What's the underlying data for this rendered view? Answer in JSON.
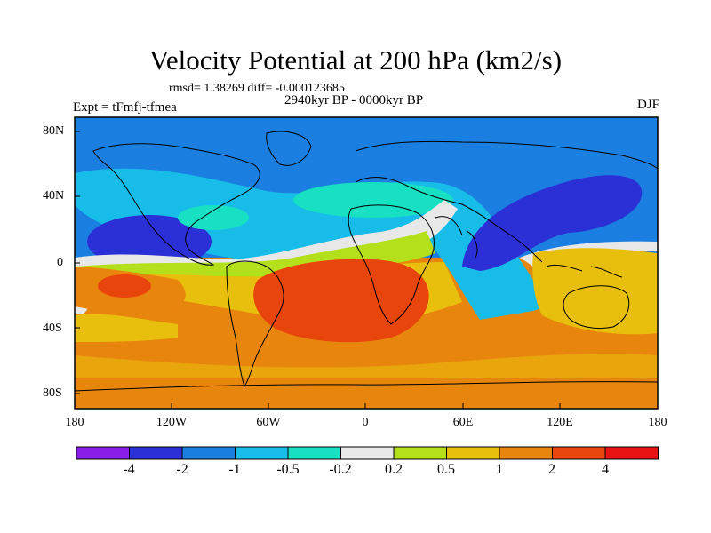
{
  "title": "Velocity Potential at 200 hPa (km2/s)",
  "stats": "rmsd= 1.38269 diff= -0.000123685",
  "experiment": "Expt = tFmfj-tfmea",
  "period": "2940kyr BP - 0000kyr BP",
  "season": "DJF",
  "y_ticks": [
    "80N",
    "40N",
    "0",
    "40S",
    "80S"
  ],
  "x_ticks": [
    "180",
    "120W",
    "60W",
    "0",
    "60E",
    "120E",
    "180"
  ],
  "colorbar": {
    "colors": [
      "#8a1fe8",
      "#2b2fd6",
      "#1a7fe0",
      "#17bde8",
      "#17e0c3",
      "#e8e8e8",
      "#b3e01a",
      "#e8bf0d",
      "#e8850d",
      "#e8450d",
      "#e81414"
    ],
    "labels": [
      "-4",
      "-2",
      "-1",
      "-0.5",
      "-0.2",
      "0.2",
      "0.5",
      "1",
      "2",
      "4"
    ]
  }
}
